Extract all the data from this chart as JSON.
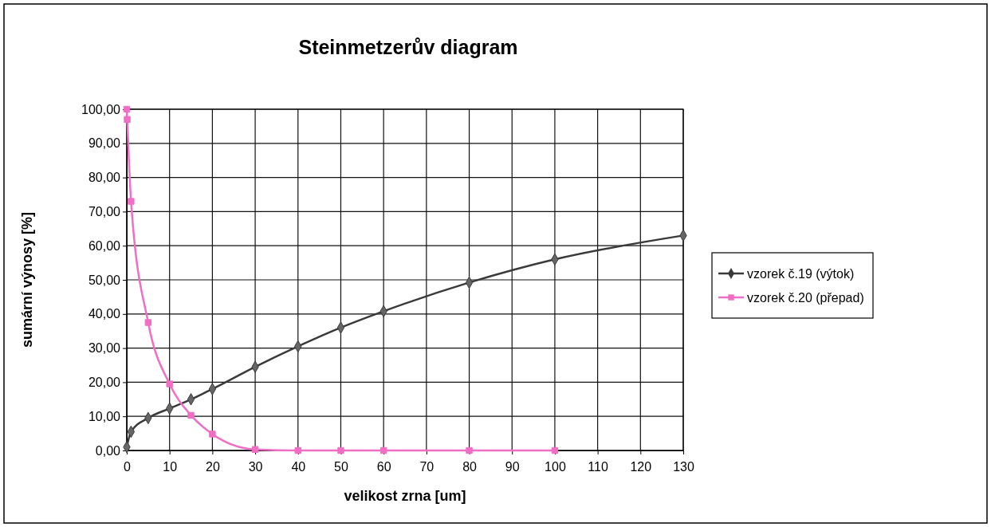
{
  "chart_data": {
    "type": "line",
    "title": "Steinmetzerův diagram",
    "xlabel": "velikost zrna [um]",
    "ylabel": "sumární výnosy [%]",
    "xlim": [
      0,
      130
    ],
    "xticks": [
      0,
      10,
      20,
      30,
      40,
      50,
      60,
      70,
      80,
      90,
      100,
      110,
      120,
      130
    ],
    "ylim": [
      0,
      100
    ],
    "yticks": [
      {
        "value": 0,
        "label": "0,00"
      },
      {
        "value": 10,
        "label": "10,00"
      },
      {
        "value": 20,
        "label": "20,00"
      },
      {
        "value": 30,
        "label": "30,00"
      },
      {
        "value": 40,
        "label": "40,00"
      },
      {
        "value": 50,
        "label": "50,00"
      },
      {
        "value": 60,
        "label": "60,00"
      },
      {
        "value": 70,
        "label": "70,00"
      },
      {
        "value": 80,
        "label": "80,00"
      },
      {
        "value": 90,
        "label": "90,00"
      },
      {
        "value": 100,
        "label": "100,00"
      }
    ],
    "grid": true,
    "legend": "right",
    "series": [
      {
        "name": "vzorek č.19 (výtok)",
        "color": "#3a3a3a",
        "marker": "diamond",
        "x": [
          0,
          1,
          5,
          10,
          15,
          20,
          30,
          40,
          50,
          60,
          80,
          100,
          130
        ],
        "values": [
          1.0,
          5.5,
          9.5,
          12.3,
          15.0,
          18.0,
          24.5,
          30.5,
          36.0,
          40.8,
          49.2,
          56.0,
          63.0
        ]
      },
      {
        "name": "vzorek č.20 (přepad)",
        "color": "#f06ec4",
        "marker": "square",
        "x": [
          0,
          0.1,
          1,
          5,
          10,
          15,
          20,
          30,
          40,
          50,
          60,
          80,
          100
        ],
        "values": [
          100,
          97,
          73,
          37.5,
          19.5,
          10.3,
          4.8,
          0.3,
          0,
          0,
          0,
          0,
          0
        ]
      }
    ]
  }
}
